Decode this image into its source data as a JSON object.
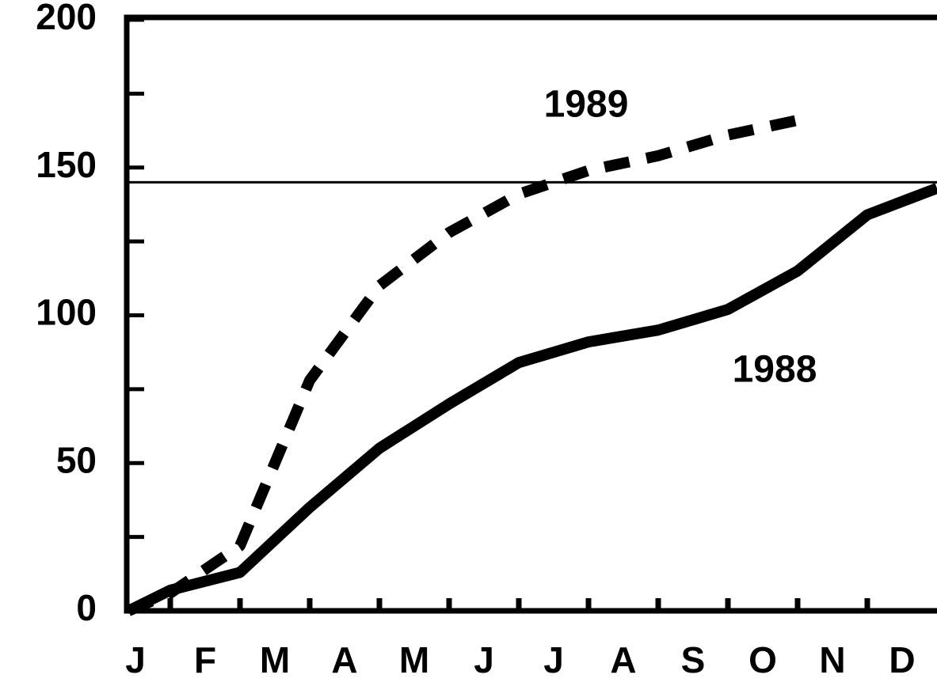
{
  "chart_data": {
    "type": "line",
    "x": [
      0.4,
      1,
      2,
      3,
      4,
      5,
      6,
      7,
      8,
      9,
      10,
      11,
      12
    ],
    "series": [
      {
        "name": "1988",
        "color": "#000000",
        "dash": false,
        "values": [
          0,
          7,
          13,
          35,
          55,
          70,
          84,
          91,
          95,
          102,
          115,
          134,
          143
        ]
      },
      {
        "name": "1989",
        "color": "#000000",
        "dash": true,
        "values": [
          0,
          6,
          22,
          78,
          110,
          128,
          141,
          149,
          154,
          161,
          166,
          null,
          null
        ]
      }
    ],
    "annotations": [
      "1989",
      "1988"
    ],
    "xlim": [
      0.375,
      12
    ],
    "xticks": [
      {
        "value": 0.5,
        "label": "J"
      },
      {
        "value": 1.5,
        "label": "F"
      },
      {
        "value": 2.5,
        "label": "M"
      },
      {
        "value": 3.5,
        "label": "A"
      },
      {
        "value": 4.5,
        "label": "M"
      },
      {
        "value": 5.5,
        "label": "J"
      },
      {
        "value": 6.5,
        "label": "J"
      },
      {
        "value": 7.5,
        "label": "A"
      },
      {
        "value": 8.5,
        "label": "S"
      },
      {
        "value": 9.5,
        "label": "O"
      },
      {
        "value": 10.5,
        "label": "N"
      },
      {
        "value": 11.5,
        "label": "D"
      }
    ],
    "xminorticks": [
      1,
      2,
      3,
      4,
      5,
      6,
      7,
      8,
      9,
      10,
      11
    ],
    "ylim": [
      0,
      200
    ],
    "yticks": [
      0,
      50,
      100,
      150,
      200
    ],
    "yminorticks": [
      25,
      75,
      125,
      175
    ],
    "reference_line": 145
  }
}
